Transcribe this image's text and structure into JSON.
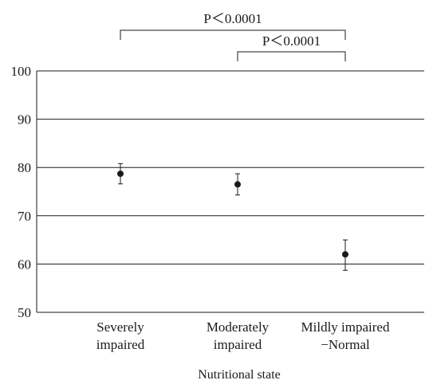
{
  "chart_data": {
    "type": "scatter",
    "title": "",
    "xlabel": "Nutritional state",
    "ylabel": "",
    "ylim": [
      50,
      100
    ],
    "yticks": [
      50,
      60,
      70,
      80,
      90,
      100
    ],
    "yticks_text": [
      "50",
      "60",
      "70",
      "80",
      "90",
      "100"
    ],
    "grid": true,
    "categories": [
      [
        "Severely",
        "impaired"
      ],
      [
        "Moderately",
        "impaired"
      ],
      [
        "Mildly impaired",
        "−Normal"
      ]
    ],
    "points": [
      {
        "category_index": 0,
        "y": 78.7,
        "err_low": 76.6,
        "err_high": 80.8
      },
      {
        "category_index": 1,
        "y": 76.5,
        "err_low": 74.3,
        "err_high": 78.7
      },
      {
        "category_index": 2,
        "y": 62.0,
        "err_low": 58.7,
        "err_high": 65.0
      }
    ],
    "comparisons": [
      {
        "from": 0,
        "to": 2,
        "label": "P＜0.0001"
      },
      {
        "from": 1,
        "to": 2,
        "label": "P＜0.0001"
      }
    ]
  }
}
